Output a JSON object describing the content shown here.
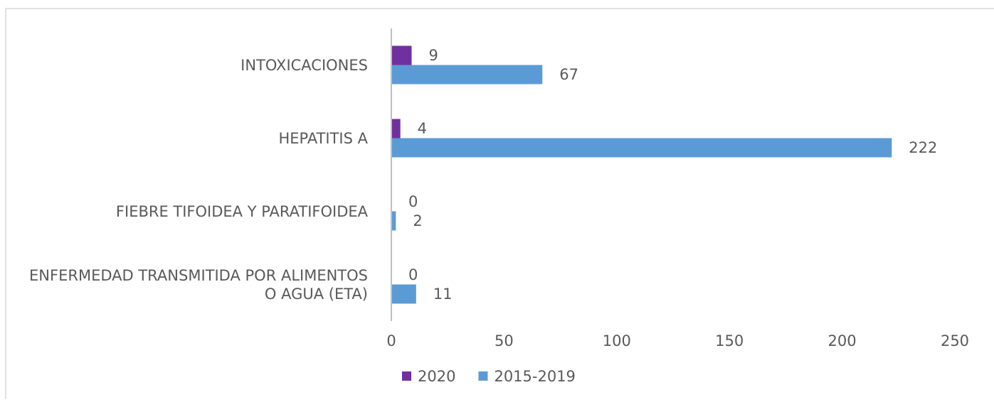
{
  "chart_data": {
    "type": "bar",
    "orientation": "horizontal",
    "categories": [
      "INTOXICACIONES",
      "HEPATITIS A",
      "FIEBRE TIFOIDEA Y PARATIFOIDEA",
      "ENFERMEDAD TRANSMITIDA POR ALIMENTOS O AGUA (ETA)"
    ],
    "series": [
      {
        "name": "2020",
        "color": "#7030a0",
        "values": [
          9,
          4,
          0,
          0
        ]
      },
      {
        "name": "2015-2019",
        "color": "#5b9bd5",
        "values": [
          67,
          222,
          2,
          11
        ]
      }
    ],
    "xlim": [
      0,
      250
    ],
    "xticks": [
      0,
      50,
      100,
      150,
      200,
      250
    ],
    "grid": false,
    "legend": "bottom"
  }
}
